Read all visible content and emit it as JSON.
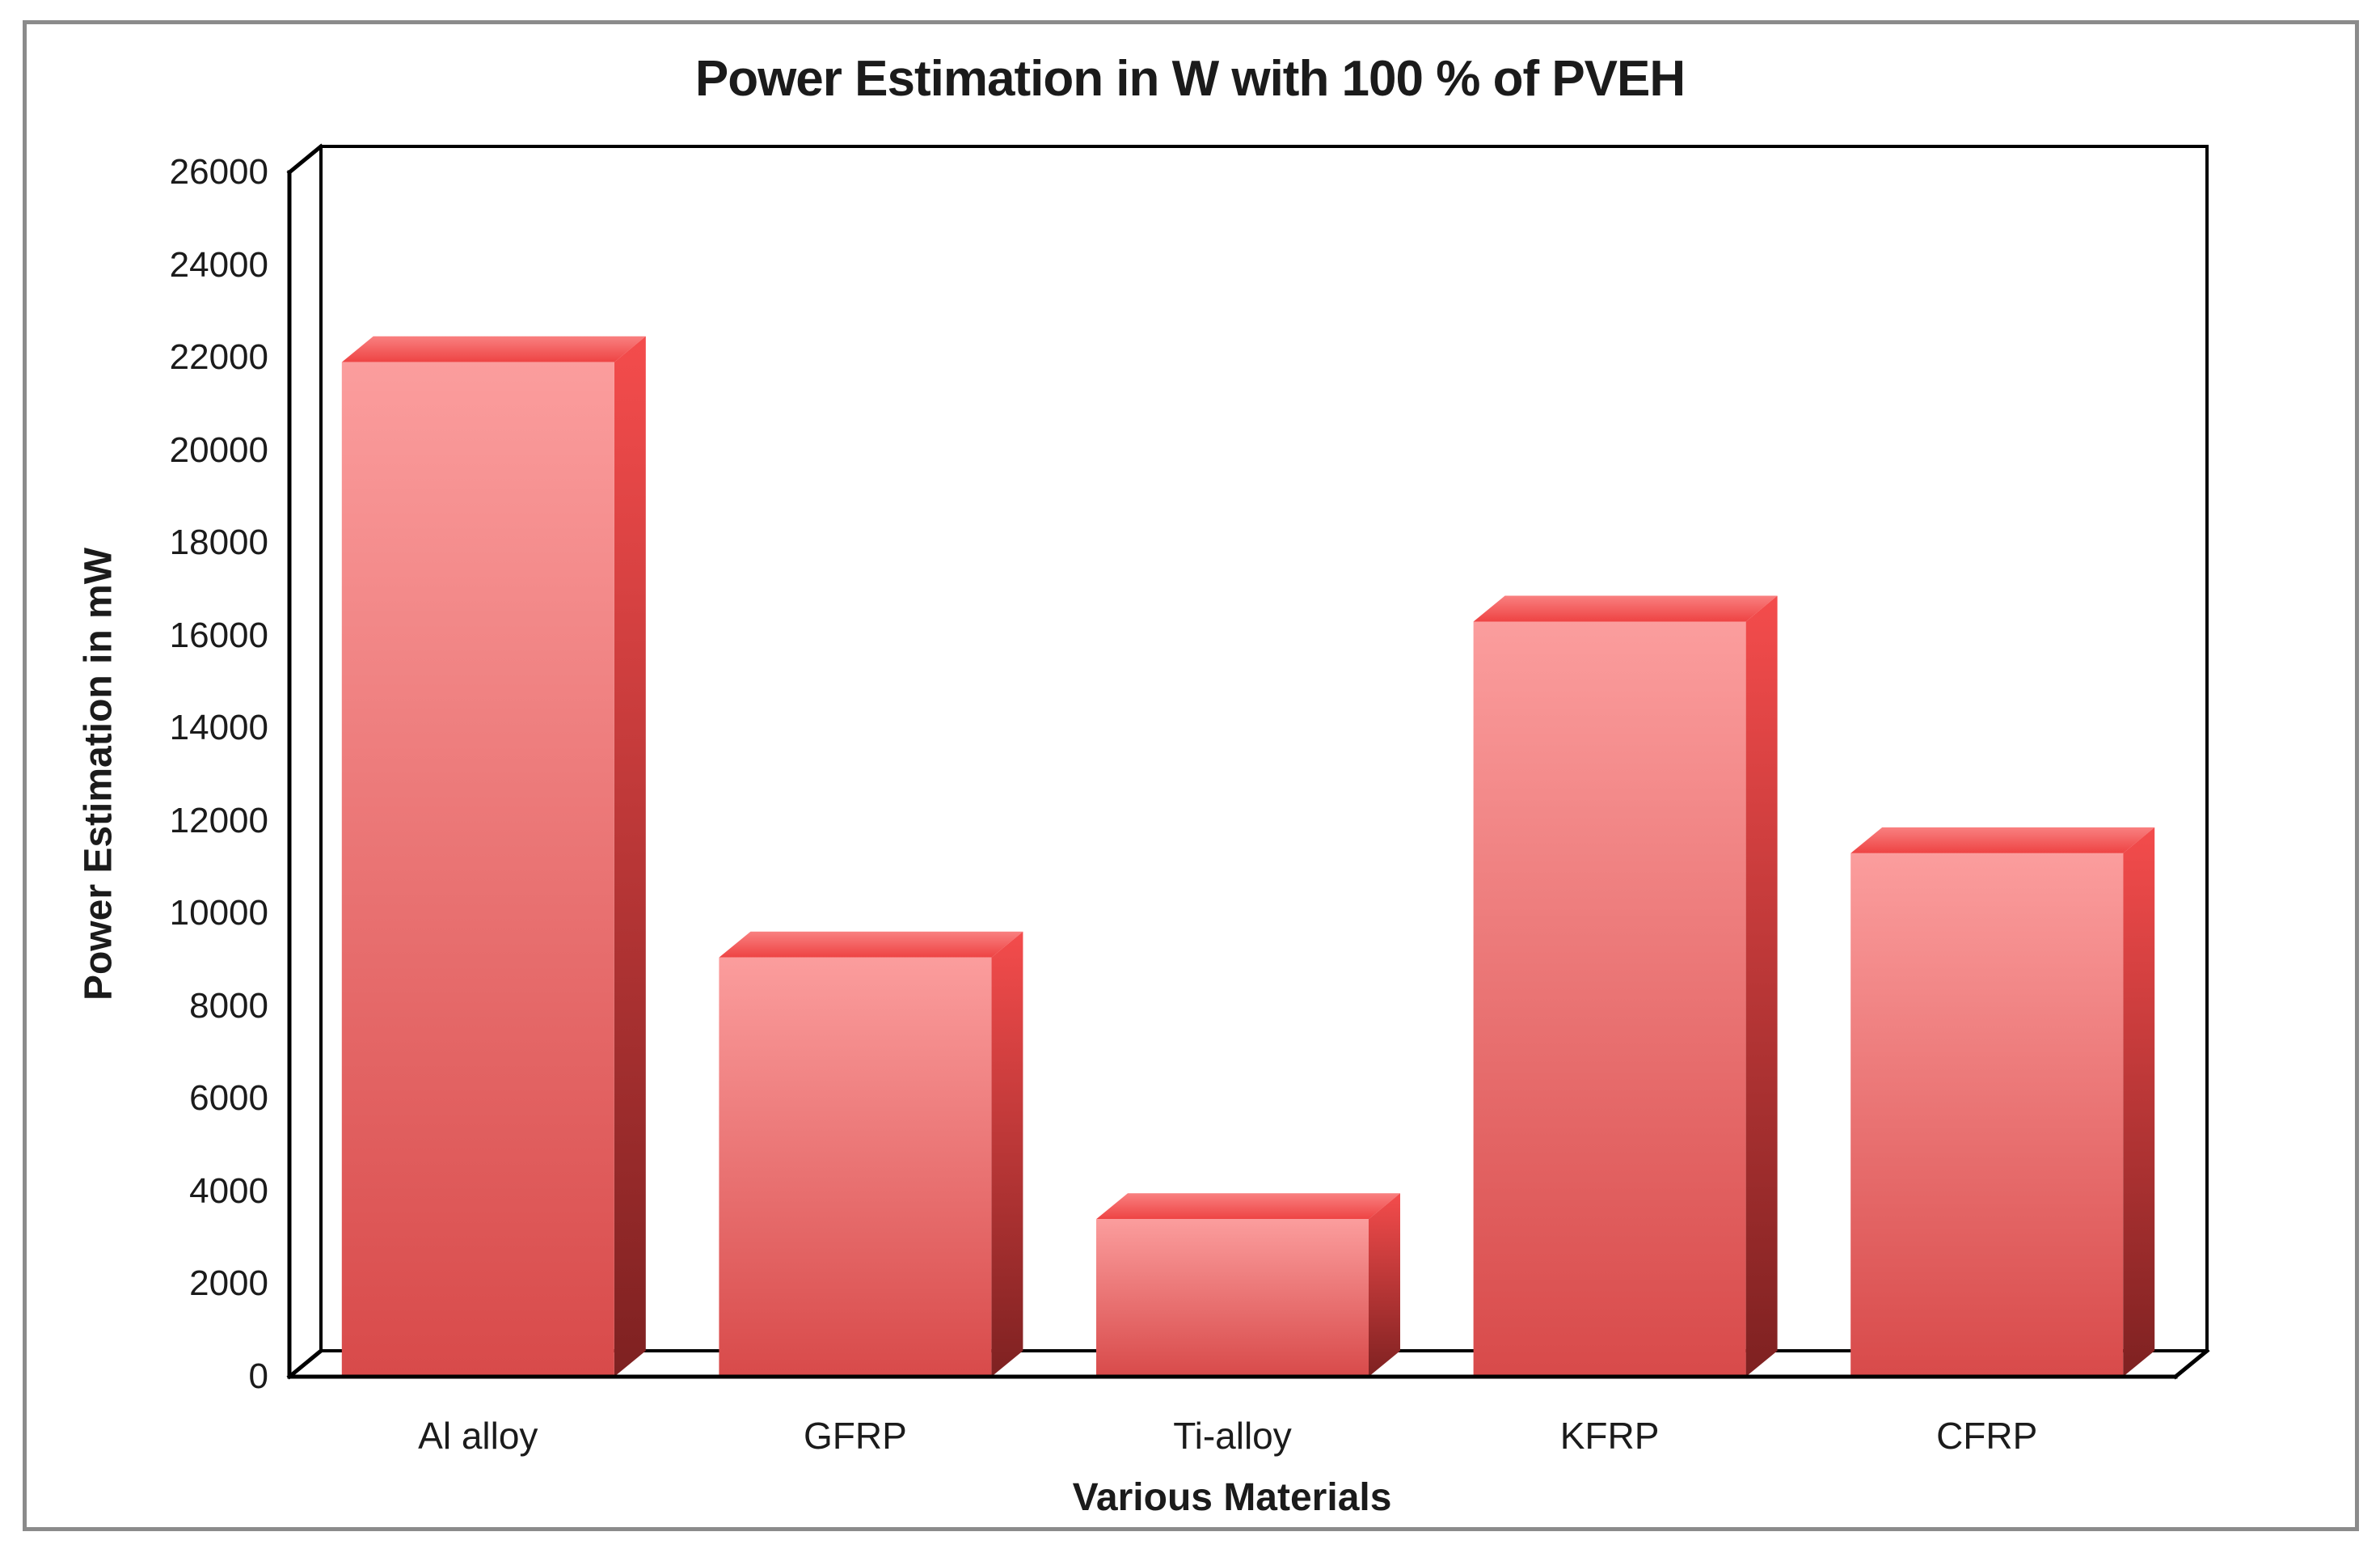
{
  "chart_data": {
    "type": "bar",
    "style": "3d-column",
    "title": "Power Estimation in W with 100 % of PVEH",
    "xlabel": "Various Materials",
    "ylabel": "Power Estimation in mW",
    "categories": [
      "Al alloy",
      "GFRP",
      "Ti-alloy",
      "KFRP",
      "CFRP"
    ],
    "values": [
      21900,
      9050,
      3400,
      16300,
      11300
    ],
    "ylim": [
      0,
      26000
    ],
    "ytick_step": 2000,
    "grid": false,
    "legend": false,
    "colors": {
      "bar_front_top": "#FB9D9D",
      "bar_front_bottom": "#D84A4A",
      "bar_top_back": "#F98080",
      "bar_top_front": "#EE4343",
      "bar_side_top": "#F44C4C",
      "bar_side_bottom": "#7E2121",
      "axis_line": "#000000",
      "text": "#1b1b1b",
      "frame_border": "#8b8b8b",
      "background": "#ffffff"
    }
  }
}
